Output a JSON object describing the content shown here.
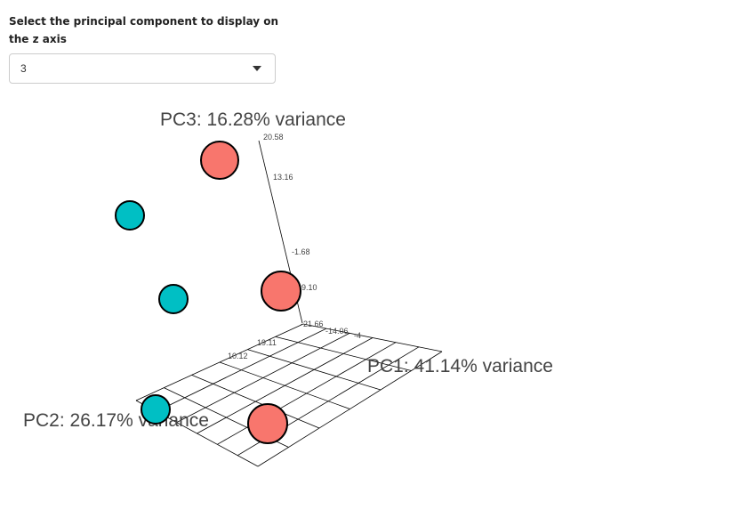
{
  "control": {
    "label": "Select the principal component to display on the z axis",
    "selected": "3"
  },
  "colors": {
    "group_a": "#f8766d",
    "group_b": "#00bfc4"
  },
  "chart_data": {
    "type": "scatter",
    "projection": "3d",
    "axes": {
      "x": {
        "title": "PC1: 41.14% variance",
        "ticks": [
          "-14.06",
          "-4"
        ]
      },
      "y": {
        "title": "PC2: 26.17% variance",
        "ticks": [
          "19.11",
          "10.12"
        ]
      },
      "z": {
        "title": "PC3: 16.28% variance",
        "ticks": [
          "20.58",
          "13.16",
          "-1.68",
          "-9.10",
          "-21.66"
        ]
      }
    },
    "grid": "on",
    "legend": "none"
  }
}
